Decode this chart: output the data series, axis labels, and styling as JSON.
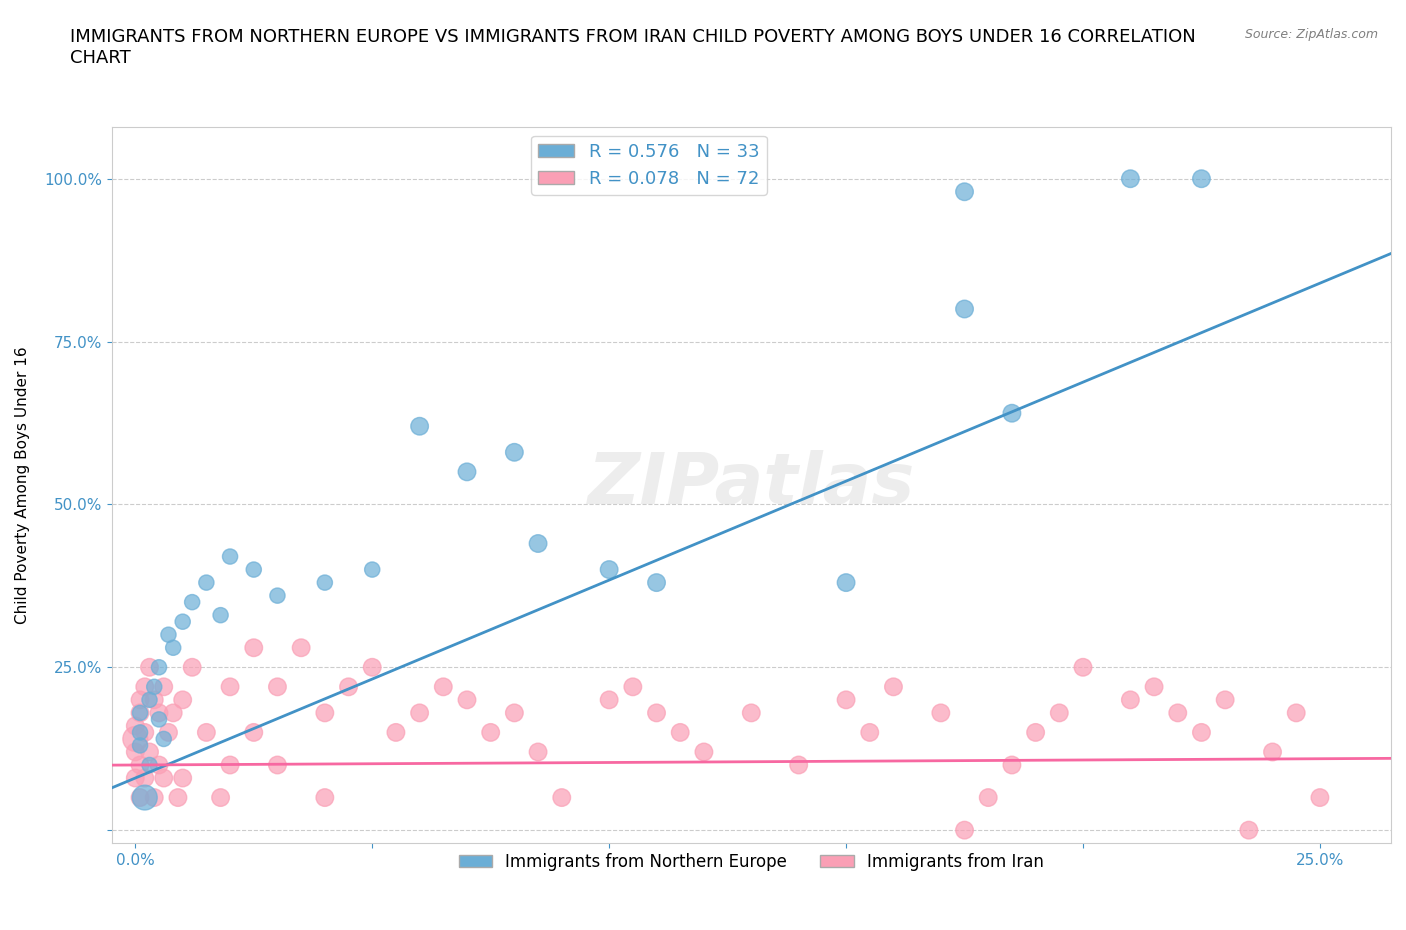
{
  "title": "IMMIGRANTS FROM NORTHERN EUROPE VS IMMIGRANTS FROM IRAN CHILD POVERTY AMONG BOYS UNDER 16 CORRELATION\nCHART",
  "source": "Source: ZipAtlas.com",
  "xlabel": "",
  "ylabel": "Child Poverty Among Boys Under 16",
  "xlim": [
    -0.005,
    0.265
  ],
  "ylim": [
    -0.02,
    1.08
  ],
  "xticks": [
    0.0,
    0.05,
    0.1,
    0.15,
    0.2,
    0.25
  ],
  "xticklabels": [
    "0.0%",
    "",
    "",
    "",
    "",
    "25.0%"
  ],
  "yticks": [
    0.0,
    0.25,
    0.5,
    0.75,
    1.0
  ],
  "yticklabels": [
    "",
    "25.0%",
    "50.0%",
    "75.0%",
    "100.0%"
  ],
  "watermark": "ZIPatlas",
  "blue_color": "#6baed6",
  "pink_color": "#fa9fb5",
  "blue_line_color": "#4292c6",
  "pink_line_color": "#f768a1",
  "R_blue": 0.576,
  "N_blue": 33,
  "R_pink": 0.078,
  "N_pink": 72,
  "legend_label_blue": "Immigrants from Northern Europe",
  "legend_label_pink": "Immigrants from Iran",
  "blue_scatter": [
    [
      0.001,
      0.15
    ],
    [
      0.001,
      0.13
    ],
    [
      0.001,
      0.18
    ],
    [
      0.002,
      0.05
    ],
    [
      0.003,
      0.2
    ],
    [
      0.003,
      0.1
    ],
    [
      0.004,
      0.22
    ],
    [
      0.005,
      0.17
    ],
    [
      0.005,
      0.25
    ],
    [
      0.006,
      0.14
    ],
    [
      0.007,
      0.3
    ],
    [
      0.008,
      0.28
    ],
    [
      0.01,
      0.32
    ],
    [
      0.012,
      0.35
    ],
    [
      0.015,
      0.38
    ],
    [
      0.018,
      0.33
    ],
    [
      0.02,
      0.42
    ],
    [
      0.025,
      0.4
    ],
    [
      0.03,
      0.36
    ],
    [
      0.04,
      0.38
    ],
    [
      0.05,
      0.4
    ],
    [
      0.06,
      0.62
    ],
    [
      0.07,
      0.55
    ],
    [
      0.08,
      0.58
    ],
    [
      0.085,
      0.44
    ],
    [
      0.1,
      0.4
    ],
    [
      0.11,
      0.38
    ],
    [
      0.15,
      0.38
    ],
    [
      0.175,
      0.98
    ],
    [
      0.175,
      0.8
    ],
    [
      0.185,
      0.64
    ],
    [
      0.21,
      1.0
    ],
    [
      0.225,
      1.0
    ]
  ],
  "blue_sizes": [
    15,
    15,
    15,
    40,
    15,
    15,
    15,
    15,
    15,
    15,
    15,
    15,
    15,
    15,
    15,
    15,
    15,
    15,
    15,
    15,
    15,
    20,
    20,
    20,
    20,
    20,
    20,
    20,
    20,
    20,
    20,
    20,
    20
  ],
  "pink_scatter": [
    [
      0.0,
      0.14
    ],
    [
      0.0,
      0.16
    ],
    [
      0.0,
      0.12
    ],
    [
      0.0,
      0.08
    ],
    [
      0.001,
      0.2
    ],
    [
      0.001,
      0.18
    ],
    [
      0.001,
      0.1
    ],
    [
      0.001,
      0.05
    ],
    [
      0.002,
      0.22
    ],
    [
      0.002,
      0.15
    ],
    [
      0.002,
      0.08
    ],
    [
      0.003,
      0.25
    ],
    [
      0.003,
      0.12
    ],
    [
      0.004,
      0.2
    ],
    [
      0.004,
      0.05
    ],
    [
      0.005,
      0.18
    ],
    [
      0.005,
      0.1
    ],
    [
      0.006,
      0.22
    ],
    [
      0.006,
      0.08
    ],
    [
      0.007,
      0.15
    ],
    [
      0.008,
      0.18
    ],
    [
      0.009,
      0.05
    ],
    [
      0.01,
      0.2
    ],
    [
      0.01,
      0.08
    ],
    [
      0.012,
      0.25
    ],
    [
      0.015,
      0.15
    ],
    [
      0.018,
      0.05
    ],
    [
      0.02,
      0.22
    ],
    [
      0.02,
      0.1
    ],
    [
      0.025,
      0.28
    ],
    [
      0.025,
      0.15
    ],
    [
      0.03,
      0.22
    ],
    [
      0.03,
      0.1
    ],
    [
      0.035,
      0.28
    ],
    [
      0.04,
      0.18
    ],
    [
      0.04,
      0.05
    ],
    [
      0.045,
      0.22
    ],
    [
      0.05,
      0.25
    ],
    [
      0.055,
      0.15
    ],
    [
      0.06,
      0.18
    ],
    [
      0.065,
      0.22
    ],
    [
      0.07,
      0.2
    ],
    [
      0.075,
      0.15
    ],
    [
      0.08,
      0.18
    ],
    [
      0.085,
      0.12
    ],
    [
      0.09,
      0.05
    ],
    [
      0.1,
      0.2
    ],
    [
      0.105,
      0.22
    ],
    [
      0.11,
      0.18
    ],
    [
      0.115,
      0.15
    ],
    [
      0.12,
      0.12
    ],
    [
      0.13,
      0.18
    ],
    [
      0.14,
      0.1
    ],
    [
      0.15,
      0.2
    ],
    [
      0.155,
      0.15
    ],
    [
      0.16,
      0.22
    ],
    [
      0.17,
      0.18
    ],
    [
      0.175,
      0.0
    ],
    [
      0.18,
      0.05
    ],
    [
      0.185,
      0.1
    ],
    [
      0.19,
      0.15
    ],
    [
      0.195,
      0.18
    ],
    [
      0.2,
      0.25
    ],
    [
      0.21,
      0.2
    ],
    [
      0.215,
      0.22
    ],
    [
      0.22,
      0.18
    ],
    [
      0.225,
      0.15
    ],
    [
      0.23,
      0.2
    ],
    [
      0.235,
      0.0
    ],
    [
      0.24,
      0.12
    ],
    [
      0.245,
      0.18
    ],
    [
      0.25,
      0.05
    ]
  ],
  "pink_sizes": [
    40,
    20,
    20,
    20,
    20,
    20,
    20,
    20,
    20,
    20,
    20,
    20,
    20,
    20,
    20,
    20,
    20,
    20,
    20,
    20,
    20,
    20,
    20,
    20,
    20,
    20,
    20,
    20,
    20,
    20,
    20,
    20,
    20,
    20,
    20,
    20,
    20,
    20,
    20,
    20,
    20,
    20,
    20,
    20,
    20,
    20,
    20,
    20,
    20,
    20,
    20,
    20,
    20,
    20,
    20,
    20,
    20,
    20,
    20,
    20,
    20,
    20,
    20,
    20,
    20,
    20,
    20,
    20,
    20,
    20,
    20,
    20
  ],
  "grid_color": "#cccccc",
  "bg_color": "#ffffff",
  "axis_color": "#cccccc",
  "tick_color": "#4292c6",
  "title_fontsize": 13,
  "label_fontsize": 11
}
